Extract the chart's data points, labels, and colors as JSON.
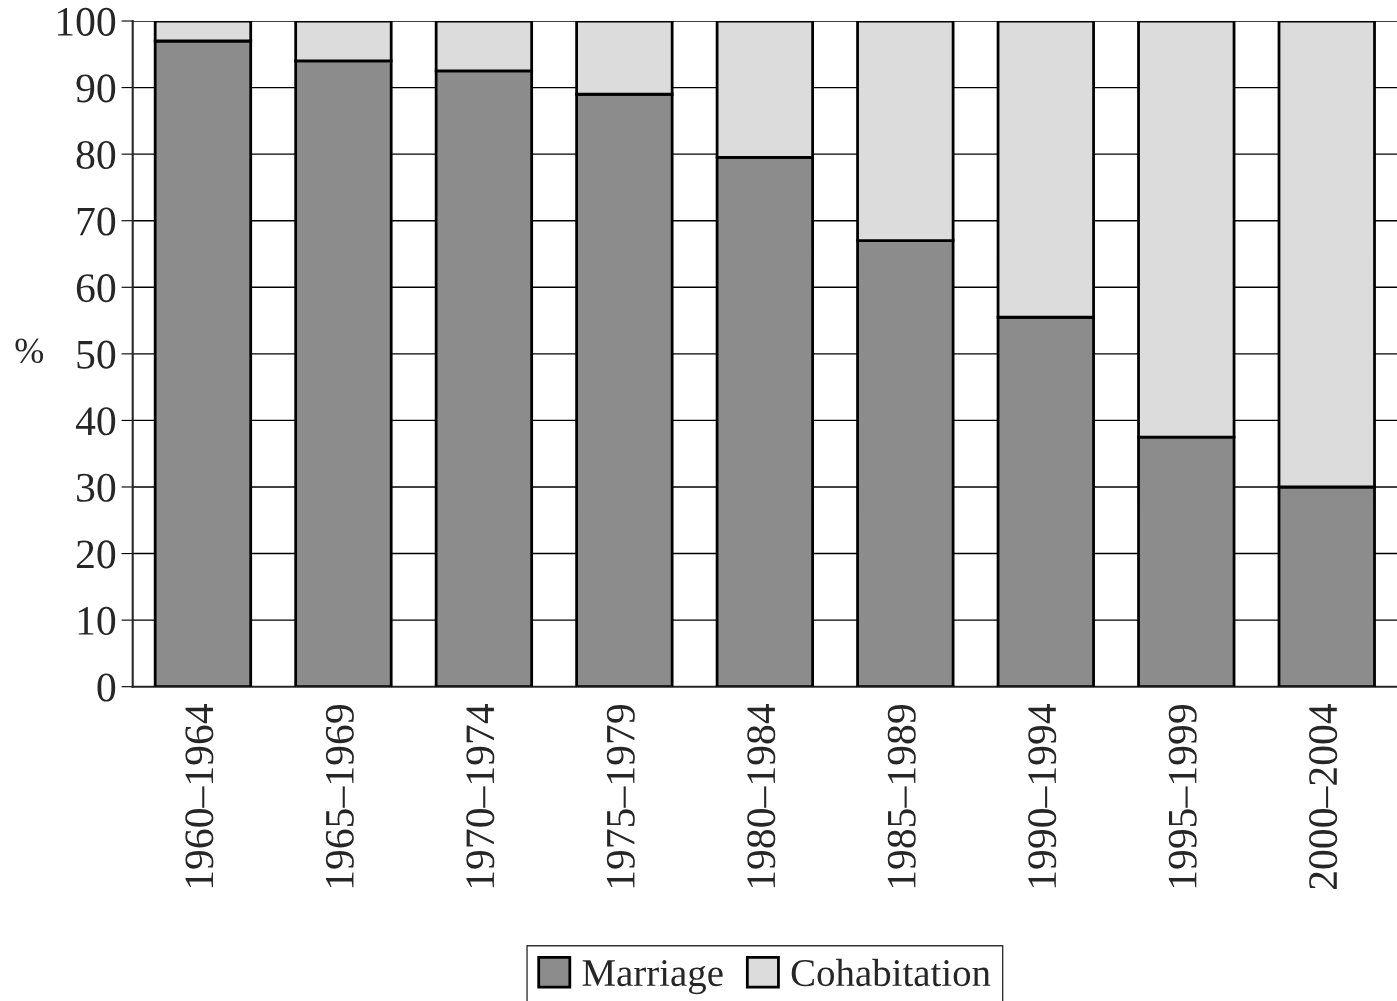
{
  "chart_data": {
    "type": "bar",
    "stacked": true,
    "ylabel": "%",
    "categories": [
      "1960–1964",
      "1965–1969",
      "1970–1974",
      "1975–1979",
      "1980–1984",
      "1985–1989",
      "1990–1994",
      "1995–1999",
      "2000–2004"
    ],
    "series": [
      {
        "name": "Marriage",
        "color": "#8c8c8c",
        "values": [
          97,
          94,
          92.5,
          89,
          79.5,
          67,
          55.5,
          37.5,
          30
        ]
      },
      {
        "name": "Cohabitation",
        "color": "#dcdcdc",
        "values": [
          3,
          6,
          7.5,
          11,
          20.5,
          33,
          44.5,
          62.5,
          70
        ]
      }
    ],
    "ylim": [
      0,
      100
    ],
    "yticks": [
      0,
      10,
      20,
      30,
      40,
      50,
      60,
      70,
      80,
      90,
      100
    ],
    "grid": "y",
    "legend": "bottom"
  }
}
